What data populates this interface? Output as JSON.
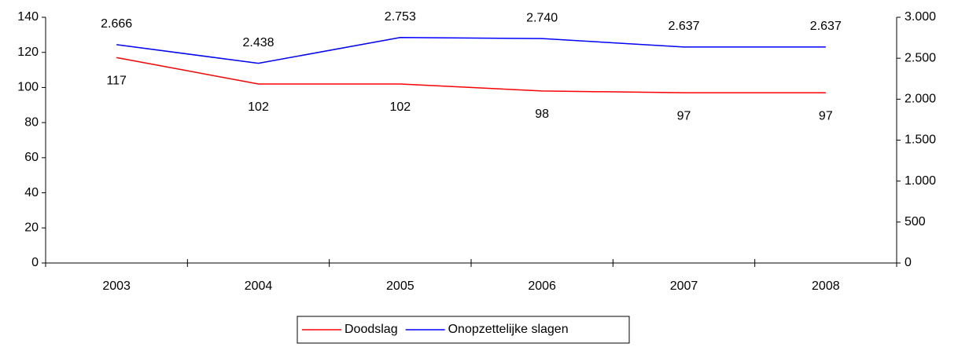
{
  "chart_data": {
    "type": "line",
    "categories": [
      "2003",
      "2004",
      "2005",
      "2006",
      "2007",
      "2008"
    ],
    "series": [
      {
        "name": "Doodslag",
        "color": "#ff0000",
        "values": [
          117,
          102,
          102,
          98,
          97,
          97
        ]
      },
      {
        "name": "Onopzettelijke slagen",
        "color": "#0000ff",
        "axis": "y2",
        "values": [
          2666,
          2438,
          2753,
          2740,
          2637,
          2637
        ],
        "value_labels": [
          "2.666",
          "2.438",
          "2.753",
          "2.740",
          "2.637",
          "2.637"
        ]
      }
    ],
    "ylim": [
      0,
      140
    ],
    "yticks": [
      0,
      20,
      40,
      60,
      80,
      100,
      120,
      140
    ],
    "y2lim": [
      0,
      3000
    ],
    "y2ticks": [
      0,
      500,
      {
        "value": 1000,
        "label": "1.000"
      },
      {
        "value": 1500,
        "label": "1.500"
      },
      {
        "value": 2000,
        "label": "2.000"
      },
      {
        "value": 2500,
        "label": "2.500"
      },
      {
        "value": 3000,
        "label": "3.000"
      }
    ],
    "legend": "bottom"
  }
}
